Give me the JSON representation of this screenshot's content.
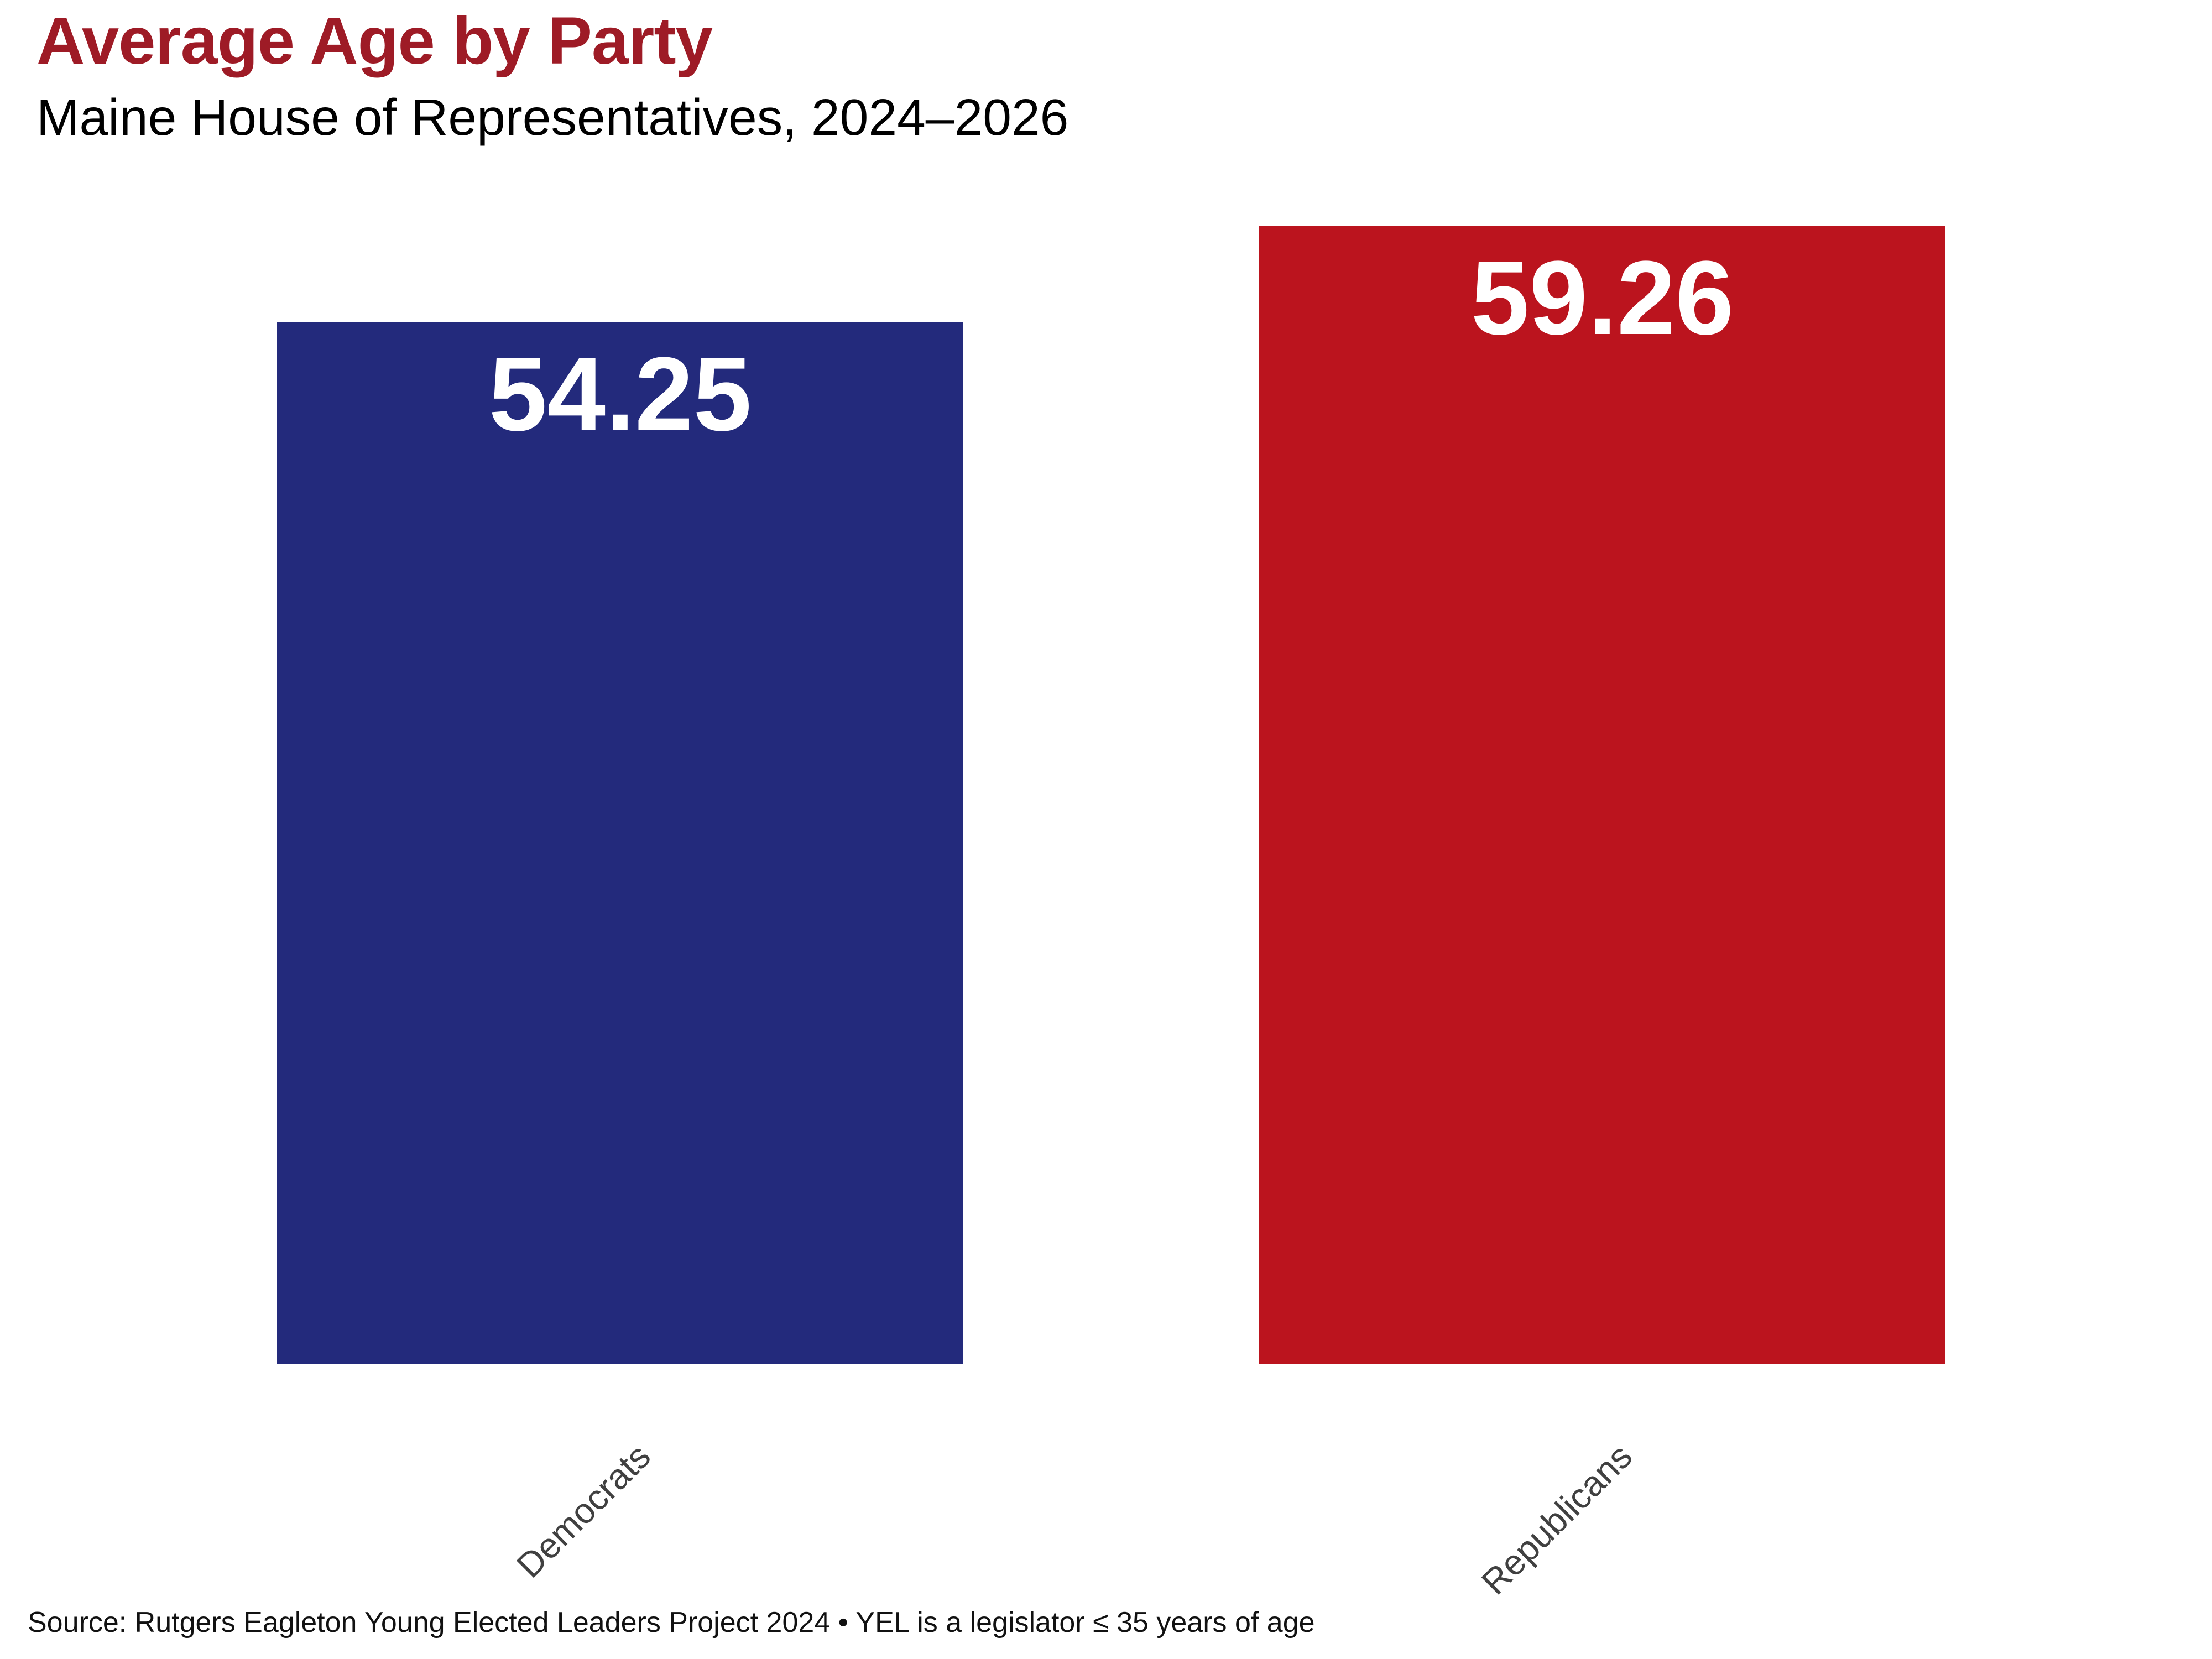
{
  "page": {
    "title": "Average Age by Party",
    "subtitle": "Maine House of Representatives, 2024–2026",
    "source_note": "Source: Rutgers Eagleton Young Elected Leaders Project 2024 • YEL is a legislator ≤ 35 years of age"
  },
  "colors": {
    "background": "#FFFFFF",
    "title_text": "#9E1B26",
    "subtitle_text": "#000000",
    "democrat_bar": "#232A7C",
    "republican_bar": "#BB141E",
    "value_label_text": "#FFFFFF",
    "category_label_text": "#404040",
    "source_text": "#111111"
  },
  "chart_data": {
    "type": "bar",
    "title": "Average Age by Party",
    "subtitle": "Maine House of Representatives, 2024–2026",
    "categories": [
      "Democrats",
      "Republicans"
    ],
    "values": [
      54.25,
      59.26
    ],
    "value_labels": [
      "54.25",
      "59.26"
    ],
    "bar_colors": [
      "#232A7C",
      "#BB141E"
    ],
    "xlabel": "",
    "ylabel": "",
    "ylim": [
      0,
      65
    ],
    "grid": false,
    "legend": false,
    "value_label_position": "inside-top",
    "category_label_rotation_deg": 45,
    "source": "Source: Rutgers Eagleton Young Elected Leaders Project 2024 • YEL is a legislator ≤ 35 years of age"
  }
}
